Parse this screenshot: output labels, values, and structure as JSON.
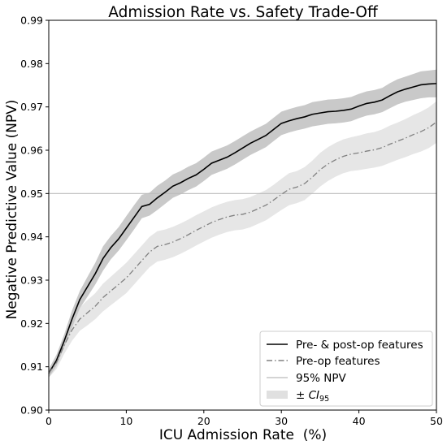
{
  "chart_data": {
    "type": "line",
    "title": "Admission Rate vs. Safety Trade-Off",
    "xlabel": "ICU Admission Rate  (%)",
    "ylabel": "Negative Predictive Value (NPV)",
    "xlim": [
      0,
      50
    ],
    "ylim": [
      0.9,
      0.99
    ],
    "xticks": [
      0,
      10,
      20,
      30,
      40,
      50
    ],
    "xtick_labels": [
      "0",
      "10",
      "20",
      "30",
      "40",
      "50"
    ],
    "yticks": [
      0.9,
      0.91,
      0.92,
      0.93,
      0.94,
      0.95,
      0.96,
      0.97,
      0.98,
      0.99
    ],
    "ytick_labels": [
      "0.90",
      "0.91",
      "0.92",
      "0.93",
      "0.94",
      "0.95",
      "0.96",
      "0.97",
      "0.98",
      "0.99"
    ],
    "grid": false,
    "legend_position": "bottom-right",
    "x": [
      0,
      1,
      2,
      3,
      4,
      5,
      6,
      7,
      8,
      9,
      10,
      11,
      12,
      13,
      14,
      15,
      16,
      17,
      18,
      19,
      20,
      21,
      22,
      23,
      24,
      25,
      26,
      27,
      28,
      29,
      30,
      31,
      32,
      33,
      34,
      35,
      36,
      37,
      38,
      39,
      40,
      41,
      42,
      43,
      44,
      45,
      46,
      47,
      48,
      49,
      50
    ],
    "series": [
      {
        "name": "Pre- & post-op features",
        "style": "solid",
        "color": "#000000",
        "values": [
          0.9085,
          0.9115,
          0.916,
          0.921,
          0.9255,
          0.9285,
          0.9315,
          0.935,
          0.9375,
          0.9395,
          0.942,
          0.9445,
          0.947,
          0.9475,
          0.949,
          0.9503,
          0.9517,
          0.9525,
          0.9535,
          0.9543,
          0.9556,
          0.957,
          0.9577,
          0.9584,
          0.9594,
          0.9605,
          0.9616,
          0.9625,
          0.9634,
          0.9648,
          0.9662,
          0.9668,
          0.9673,
          0.9677,
          0.9683,
          0.9686,
          0.9689,
          0.969,
          0.9692,
          0.9695,
          0.9702,
          0.9708,
          0.9711,
          0.9716,
          0.9726,
          0.9735,
          0.9741,
          0.9746,
          0.9751,
          0.9753,
          0.9754
        ],
        "ci_lower": [
          0.9075,
          0.9102,
          0.9145,
          0.919,
          0.9235,
          0.9262,
          0.929,
          0.9322,
          0.9348,
          0.9368,
          0.9392,
          0.9417,
          0.9443,
          0.9449,
          0.9462,
          0.9476,
          0.949,
          0.9498,
          0.9508,
          0.9516,
          0.9529,
          0.9543,
          0.955,
          0.9557,
          0.9567,
          0.9578,
          0.9589,
          0.9598,
          0.9607,
          0.9621,
          0.9635,
          0.9641,
          0.9646,
          0.965,
          0.9655,
          0.9658,
          0.9661,
          0.9662,
          0.9664,
          0.9667,
          0.9674,
          0.968,
          0.9683,
          0.9688,
          0.9697,
          0.9706,
          0.9712,
          0.9716,
          0.972,
          0.9722,
          0.9722
        ],
        "ci_upper": [
          0.9095,
          0.9128,
          0.9175,
          0.923,
          0.9275,
          0.9308,
          0.934,
          0.9378,
          0.9402,
          0.9422,
          0.9448,
          0.9473,
          0.9497,
          0.9502,
          0.9518,
          0.953,
          0.9544,
          0.9552,
          0.9562,
          0.957,
          0.9583,
          0.9597,
          0.9604,
          0.9611,
          0.9621,
          0.9632,
          0.9643,
          0.9652,
          0.9661,
          0.9675,
          0.9689,
          0.9695,
          0.97,
          0.9704,
          0.9711,
          0.9714,
          0.9717,
          0.9718,
          0.972,
          0.9723,
          0.973,
          0.9736,
          0.9739,
          0.9744,
          0.9755,
          0.9764,
          0.977,
          0.9776,
          0.9782,
          0.9784,
          0.9786
        ]
      },
      {
        "name": "Pre-op features",
        "style": "dashdot",
        "color": "#808080",
        "values": [
          0.9085,
          0.911,
          0.915,
          0.9185,
          0.921,
          0.9225,
          0.924,
          0.926,
          0.9275,
          0.929,
          0.9305,
          0.9325,
          0.9345,
          0.9365,
          0.9378,
          0.9382,
          0.9388,
          0.9396,
          0.9405,
          0.9415,
          0.9424,
          0.9433,
          0.944,
          0.9446,
          0.945,
          0.9452,
          0.9457,
          0.9465,
          0.9473,
          0.9485,
          0.9498,
          0.951,
          0.9515,
          0.9523,
          0.9538,
          0.9555,
          0.9568,
          0.9578,
          0.9586,
          0.9591,
          0.9594,
          0.9598,
          0.9601,
          0.9606,
          0.9614,
          0.9621,
          0.9628,
          0.9636,
          0.9643,
          0.9652,
          0.9665
        ],
        "ci_lower": [
          0.9075,
          0.9095,
          0.913,
          0.916,
          0.9183,
          0.9196,
          0.921,
          0.9228,
          0.9242,
          0.9256,
          0.927,
          0.929,
          0.931,
          0.933,
          0.9343,
          0.9347,
          0.9353,
          0.9361,
          0.937,
          0.938,
          0.9389,
          0.9398,
          0.9405,
          0.9411,
          0.9415,
          0.9417,
          0.9422,
          0.943,
          0.9438,
          0.945,
          0.9462,
          0.9473,
          0.9478,
          0.9485,
          0.95,
          0.9516,
          0.9529,
          0.9539,
          0.9547,
          0.9552,
          0.9554,
          0.9557,
          0.956,
          0.9564,
          0.9571,
          0.9578,
          0.9584,
          0.9591,
          0.9597,
          0.9605,
          0.9617
        ],
        "ci_upper": [
          0.9095,
          0.9125,
          0.917,
          0.921,
          0.9237,
          0.9254,
          0.927,
          0.9292,
          0.9308,
          0.9324,
          0.934,
          0.936,
          0.938,
          0.94,
          0.9413,
          0.9417,
          0.9423,
          0.9431,
          0.944,
          0.945,
          0.9459,
          0.9468,
          0.9475,
          0.9481,
          0.9485,
          0.9487,
          0.9492,
          0.95,
          0.9508,
          0.952,
          0.9534,
          0.9547,
          0.9552,
          0.9561,
          0.9576,
          0.9594,
          0.9607,
          0.9617,
          0.9625,
          0.963,
          0.9634,
          0.9639,
          0.9642,
          0.9648,
          0.9657,
          0.9664,
          0.9672,
          0.9681,
          0.9689,
          0.9699,
          0.9713
        ]
      }
    ],
    "reference_lines": [
      {
        "name": "95% NPV",
        "axis": "y",
        "value": 0.95,
        "color": "#bbbbbb"
      }
    ],
    "legend": [
      {
        "label": "Pre- & post-op features",
        "kind": "solid-line",
        "color": "#000000"
      },
      {
        "label": "Pre-op features",
        "kind": "dashdot-line",
        "color": "#808080"
      },
      {
        "label": "95% NPV",
        "kind": "thin-line",
        "color": "#bbbbbb"
      },
      {
        "label_prefix": "± ",
        "label_var": "CI",
        "label_sub": "95",
        "kind": "patch",
        "color": "#e0e0e0"
      }
    ],
    "colors": {
      "band_post": "#c9c9c9",
      "band_pre": "#e6e6e6",
      "axes": "#000000"
    }
  }
}
